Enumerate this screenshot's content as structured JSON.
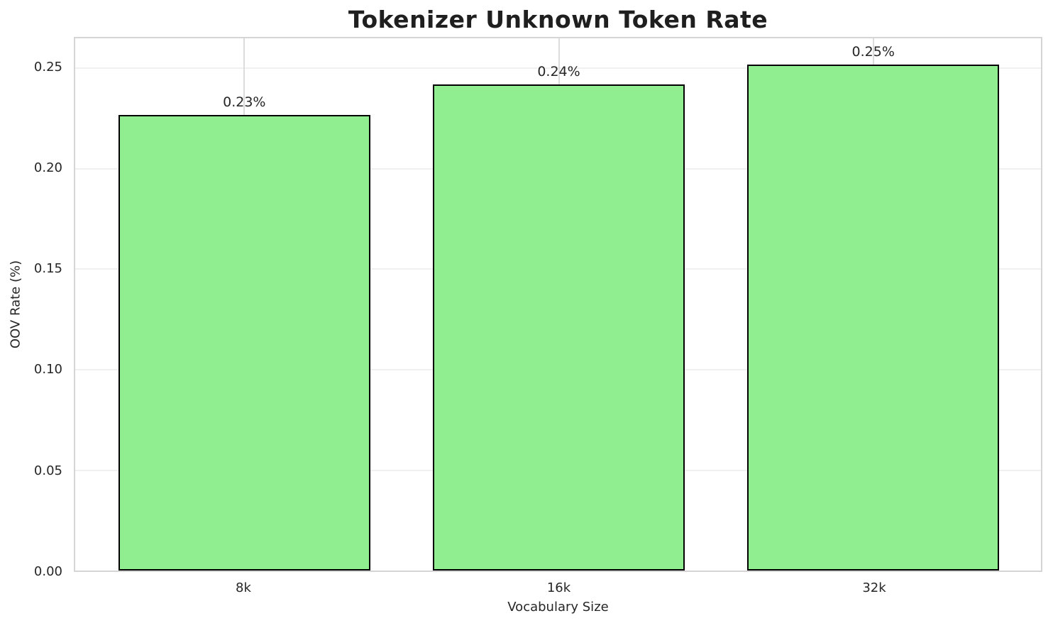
{
  "chart_data": {
    "type": "bar",
    "title": "Tokenizer Unknown Token Rate",
    "xlabel": "Vocabulary Size",
    "ylabel": "OOV Rate (%)",
    "categories": [
      "8k",
      "16k",
      "32k"
    ],
    "values": [
      0.227,
      0.242,
      0.252
    ],
    "bar_value_labels": [
      "0.23%",
      "0.24%",
      "0.25%"
    ],
    "yticks": [
      {
        "value": 0.0,
        "label": "0.00"
      },
      {
        "value": 0.05,
        "label": "0.05"
      },
      {
        "value": 0.1,
        "label": "0.10"
      },
      {
        "value": 0.15,
        "label": "0.15"
      },
      {
        "value": 0.2,
        "label": "0.20"
      },
      {
        "value": 0.25,
        "label": "0.25"
      }
    ],
    "ylim": [
      0,
      0.265
    ],
    "grid": "both",
    "legend": "none",
    "colors": {
      "bar_fill": "#90EE90",
      "bar_edge": "#000000",
      "grid_horizontal": "#f0f0f0",
      "grid_vertical": "#dcdcdc",
      "spine": "#d5d5d5",
      "text": "#262626"
    }
  }
}
